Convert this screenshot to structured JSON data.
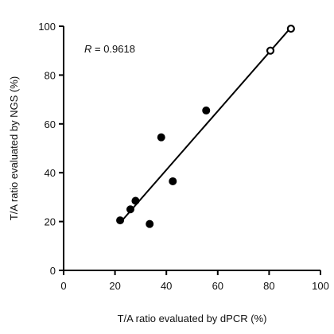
{
  "chart_data": {
    "type": "scatter",
    "title": "",
    "xlabel": "T/A ratio evaluated by dPCR (%)",
    "ylabel": "T/A ratio evaluated by NGS (%)",
    "xlim": [
      0,
      100
    ],
    "ylim": [
      0,
      100
    ],
    "x_ticks": [
      0,
      20,
      40,
      60,
      80,
      100
    ],
    "y_ticks": [
      0,
      20,
      40,
      60,
      80,
      100
    ],
    "grid": false,
    "annotation": {
      "italic": "R",
      "rest": " = 0.9618"
    },
    "series": [
      {
        "marker": "filled-circle",
        "points": [
          {
            "x": 22,
            "y": 20.5
          },
          {
            "x": 26,
            "y": 25
          },
          {
            "x": 28,
            "y": 28.5
          },
          {
            "x": 33.5,
            "y": 19
          },
          {
            "x": 38,
            "y": 54.5
          },
          {
            "x": 42.5,
            "y": 36.5
          },
          {
            "x": 55.5,
            "y": 65.5
          }
        ]
      },
      {
        "marker": "open-circle",
        "points": [
          {
            "x": 80.5,
            "y": 90
          },
          {
            "x": 88.5,
            "y": 99
          }
        ]
      }
    ],
    "fit_line": {
      "x": [
        22,
        88.5
      ],
      "y": [
        19.5,
        99.5
      ]
    },
    "colors": {
      "marker": "#000000",
      "line": "#000000",
      "axis": "#000000"
    }
  }
}
